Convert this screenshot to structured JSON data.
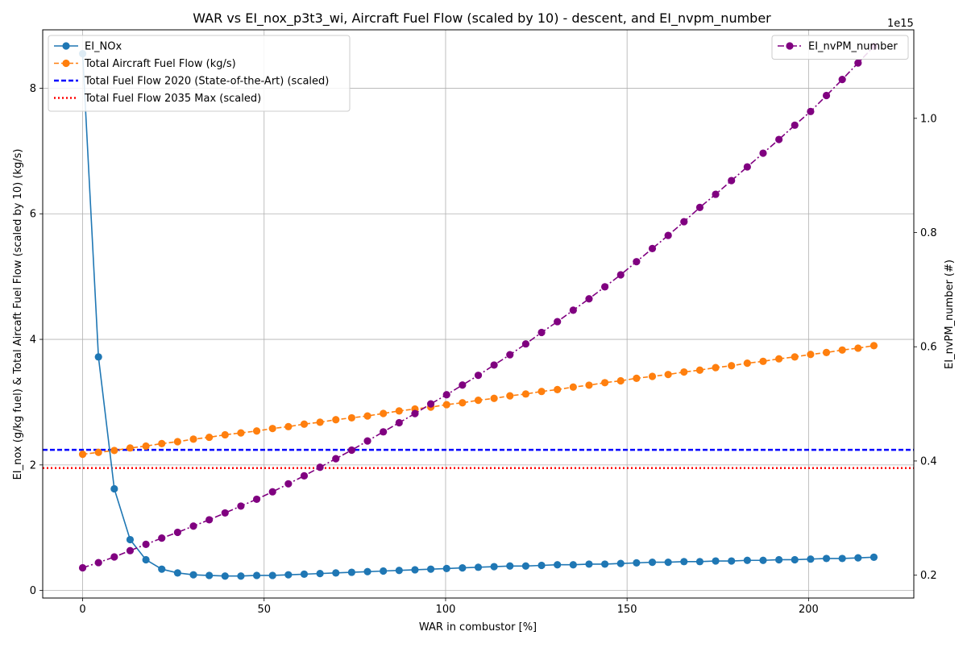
{
  "chart_data": {
    "type": "line",
    "title": "WAR vs EI_nox_p3t3_wi, Aircraft Fuel Flow (scaled by 10) - descent, and EI_nvpm_number",
    "xlabel": "WAR in combustor [%]",
    "ylabel_left": "EI_nox (g/kg fuel) & Total Aircaft Fuel Flow (scaled by 10) (kg/s)",
    "ylabel_right": "EI_nvPM_number (#)",
    "right_axis_offset_label": "1e15",
    "xlim": [
      -11,
      229
    ],
    "ylim_left": [
      -0.12,
      8.93
    ],
    "ylim_right": [
      0.16,
      1.155
    ],
    "xticks": [
      0,
      50,
      100,
      150,
      200
    ],
    "xtick_labels": [
      "0",
      "50",
      "100",
      "150",
      "200"
    ],
    "yticks_left": [
      0,
      2,
      4,
      6,
      8
    ],
    "ytick_labels_left": [
      "0",
      "2",
      "4",
      "6",
      "8"
    ],
    "yticks_right": [
      0.2,
      0.4,
      0.6,
      0.8,
      1.0
    ],
    "ytick_labels_right": [
      "0.2",
      "0.4",
      "0.6",
      "0.8",
      "1.0"
    ],
    "grid": true,
    "x": [
      0,
      4.36,
      8.72,
      13.08,
      17.44,
      21.8,
      26.16,
      30.52,
      34.88,
      39.24,
      43.6,
      47.96,
      52.32,
      56.68,
      61.04,
      65.4,
      69.76,
      74.12,
      78.48,
      82.84,
      87.2,
      91.56,
      95.92,
      100.28,
      104.64,
      109,
      113.36,
      117.72,
      122.08,
      126.44,
      130.8,
      135.16,
      139.52,
      143.88,
      148.24,
      152.6,
      156.96,
      161.32,
      165.68,
      170.04,
      174.4,
      178.76,
      183.12,
      187.48,
      191.84,
      196.2,
      200.56,
      204.92,
      209.28,
      213.64,
      218
    ],
    "series": [
      {
        "name": "EI_NOx",
        "axis": "left",
        "color": "#1f77b4",
        "linestyle": "solid",
        "marker": "circle",
        "values": [
          8.55,
          3.72,
          1.62,
          0.81,
          0.49,
          0.34,
          0.28,
          0.25,
          0.24,
          0.23,
          0.23,
          0.24,
          0.24,
          0.25,
          0.26,
          0.27,
          0.28,
          0.29,
          0.3,
          0.31,
          0.32,
          0.33,
          0.34,
          0.35,
          0.36,
          0.37,
          0.38,
          0.39,
          0.39,
          0.4,
          0.41,
          0.41,
          0.42,
          0.42,
          0.43,
          0.44,
          0.45,
          0.45,
          0.46,
          0.46,
          0.47,
          0.47,
          0.48,
          0.48,
          0.49,
          0.49,
          0.5,
          0.51,
          0.51,
          0.52,
          0.53
        ]
      },
      {
        "name": "Total Aircraft Fuel Flow (kg/s)",
        "axis": "left",
        "color": "#ff7f0e",
        "linestyle": "dashed",
        "marker": "circle",
        "values": [
          2.17,
          2.2,
          2.23,
          2.27,
          2.3,
          2.34,
          2.37,
          2.41,
          2.44,
          2.48,
          2.51,
          2.54,
          2.58,
          2.61,
          2.65,
          2.68,
          2.72,
          2.75,
          2.78,
          2.82,
          2.86,
          2.89,
          2.92,
          2.96,
          2.99,
          3.03,
          3.06,
          3.1,
          3.13,
          3.17,
          3.2,
          3.24,
          3.27,
          3.31,
          3.34,
          3.38,
          3.41,
          3.44,
          3.48,
          3.51,
          3.55,
          3.58,
          3.62,
          3.65,
          3.69,
          3.72,
          3.76,
          3.79,
          3.83,
          3.86,
          3.9
        ]
      },
      {
        "name": "EI_nvPM_number",
        "axis": "right",
        "color": "#800080",
        "linestyle": "dashdot",
        "marker": "circle",
        "values": [
          0.213,
          0.222,
          0.232,
          0.243,
          0.254,
          0.265,
          0.275,
          0.286,
          0.297,
          0.309,
          0.321,
          0.333,
          0.346,
          0.36,
          0.374,
          0.389,
          0.404,
          0.419,
          0.435,
          0.451,
          0.467,
          0.483,
          0.5,
          0.516,
          0.533,
          0.55,
          0.568,
          0.586,
          0.605,
          0.625,
          0.644,
          0.664,
          0.684,
          0.705,
          0.726,
          0.749,
          0.772,
          0.795,
          0.819,
          0.844,
          0.867,
          0.891,
          0.915,
          0.939,
          0.963,
          0.988,
          1.012,
          1.04,
          1.068,
          1.097,
          1.126
        ]
      }
    ],
    "reference_lines": [
      {
        "name": "Total Fuel Flow 2020 (State-of-the-Art) (scaled)",
        "axis": "left",
        "value": 2.24,
        "color": "#0000ff",
        "linestyle": "dashed"
      },
      {
        "name": "Total Fuel Flow 2035 Max (scaled)",
        "axis": "left",
        "value": 1.95,
        "color": "#ff0000",
        "linestyle": "dotted"
      }
    ],
    "legend_left": [
      "EI_NOx",
      "Total Aircraft Fuel Flow (kg/s)",
      "Total Fuel Flow 2020 (State-of-the-Art) (scaled)",
      "Total Fuel Flow 2035 Max (scaled)"
    ],
    "legend_right": [
      "EI_nvPM_number"
    ],
    "legend_left_position": "upper-left",
    "legend_right_position": "upper-right"
  }
}
